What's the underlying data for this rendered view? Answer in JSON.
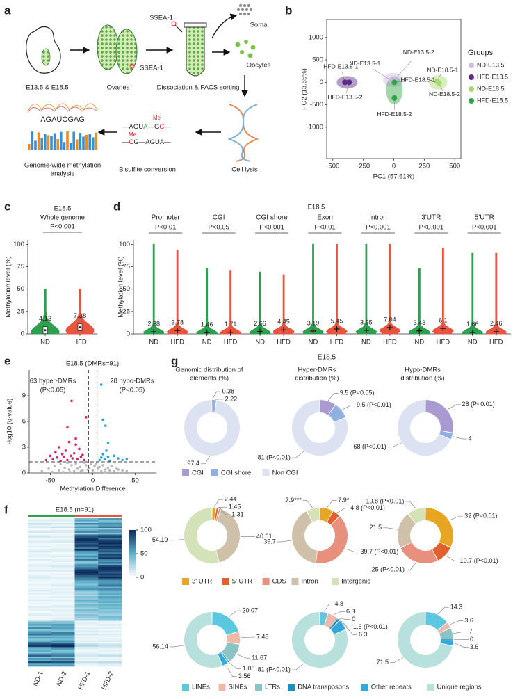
{
  "diagram": {
    "panel": "a",
    "steps": [
      "E13.5 & E18.5",
      "Ovaries",
      "Dissociation & FACS sorting",
      "Cell lysis",
      "Bisulfite conversion"
    ],
    "analysis": [
      "Genome-wide methylation",
      "analysis"
    ],
    "marker": "SSEA-1",
    "cell_types": [
      "Soma",
      "Oocytes"
    ],
    "sequence": "AGAUCGAG",
    "strand_top": [
      "—AGU",
      "A",
      "—G",
      "C",
      "—"
    ],
    "strand_bottom": [
      "—",
      "C",
      "G—AGUA—"
    ],
    "mark": "Me"
  },
  "chart_data": [
    {
      "panel": "b",
      "type": "scatter",
      "x_label": "PC1 (57.61%)",
      "y_label": "PC2 (13.65%)",
      "xlim": [
        -550,
        550
      ],
      "ylim": [
        -1700,
        1400
      ],
      "xticks": [
        -500,
        -250,
        0,
        250,
        500
      ],
      "yticks": [
        -1000,
        -500,
        0,
        500,
        1000
      ],
      "legend_title": "Groups",
      "legend": "right",
      "series": [
        {
          "name": "ND-E13.5",
          "color": "#cdb6df",
          "x": [
            -20,
            10
          ],
          "y": [
            40,
            70
          ],
          "labels": [
            "ND-E13.5-1",
            "ND-E13.5-2"
          ]
        },
        {
          "name": "HFD-E13.5",
          "color": "#5b2a86",
          "x": [
            -400,
            -365
          ],
          "y": [
            0,
            0
          ],
          "labels": [
            "HFD-E13.5-1",
            "HFD-E13.5-2"
          ]
        },
        {
          "name": "ND-E18.5",
          "color": "#a9d86e",
          "x": [
            355,
            370
          ],
          "y": [
            20,
            -20
          ],
          "labels": [
            "ND-E18.5-1",
            "ND-E18.5-2"
          ]
        },
        {
          "name": "HFD-E18.5",
          "color": "#34a448",
          "x": [
            5,
            5
          ],
          "y": [
            0,
            -350
          ],
          "labels": [
            "HFD-E18.5-1",
            "HFD-E18.5-2"
          ]
        }
      ]
    },
    {
      "panel": "c",
      "type": "violin",
      "title": "E18.5",
      "subtitle": "Whole genome",
      "annotation": "P<0.001",
      "y_label": "Methylation level (%)",
      "ylim": [
        0,
        105
      ],
      "yticks": [
        0,
        25,
        50,
        75,
        100
      ],
      "categories": [
        "ND",
        "HFD"
      ],
      "colors": [
        "#2e9e4f",
        "#e8553f"
      ],
      "values": [
        4.13,
        7.38
      ],
      "max": [
        50,
        50
      ]
    },
    {
      "panel": "d",
      "type": "violin_groups",
      "title": "E18.5",
      "y_label": "Methylation level (%)",
      "ylim": [
        0,
        105
      ],
      "yticks": [
        0,
        25,
        50,
        75,
        100
      ],
      "categories": [
        "Promoter",
        "CGI",
        "CGI shore",
        "Exon",
        "Intron",
        "3'UTR",
        "5'UTR"
      ],
      "annotations": [
        "P<0.01",
        "P<0.05",
        "P<0.001",
        "P<0.01",
        "P<0.001",
        "P<0.001",
        "P<0.001"
      ],
      "series": [
        {
          "name": "ND",
          "color": "#2e9e4f",
          "values": [
            2.38,
            1.46,
            2.66,
            3.19,
            3.95,
            3.43,
            1.66
          ],
          "max": [
            100,
            73,
            69,
            100,
            100,
            73,
            90
          ]
        },
        {
          "name": "HFD",
          "color": "#e8553f",
          "values": [
            3.78,
            1.71,
            4.45,
            5.45,
            7.04,
            6.1,
            2.46
          ],
          "max": [
            93,
            71,
            66,
            100,
            100,
            96,
            90
          ]
        }
      ]
    },
    {
      "panel": "e",
      "type": "volcano",
      "title": "E18.5 (DMRs=91)",
      "annotations": [
        [
          "63 hyper-DMRs",
          "(P<0.05)"
        ],
        [
          "28 hypo-DMRs",
          "(P<0.05)"
        ]
      ],
      "x_label": "Methylation Difference",
      "y_label": "-log10 (q-value)",
      "xlim": [
        -75,
        75
      ],
      "ylim": [
        0,
        12
      ],
      "xticks": [
        -50,
        0,
        50
      ],
      "yticks": [
        0,
        3,
        6,
        9
      ],
      "vlines": [
        -5,
        5
      ],
      "hline": 1.3,
      "series": [
        {
          "color": "#b8b8b8",
          "x": [
            -60,
            -52,
            -45,
            -40,
            -38,
            -33,
            -30,
            -28,
            -25,
            -22,
            -20,
            -18,
            -15,
            -12,
            -10,
            -8,
            -6,
            -4,
            -2,
            0,
            2,
            4,
            6,
            8,
            10,
            12,
            15,
            18,
            20,
            22,
            25,
            28,
            30,
            35,
            40,
            -35,
            -27,
            -14,
            -48,
            14
          ],
          "y": [
            0.2,
            0.5,
            0.8,
            0.3,
            1.0,
            0.6,
            1.2,
            0.4,
            0.9,
            0.2,
            1.1,
            0.5,
            0.7,
            0.3,
            1.2,
            0.9,
            0.4,
            0.6,
            1.0,
            0.3,
            0.8,
            1.1,
            0.5,
            0.7,
            0.2,
            0.9,
            0.4,
            0.6,
            0.3,
            0.8,
            0.2,
            0.5,
            0.4,
            0.3,
            0.2,
            0.1,
            0.1,
            0.2,
            0.1,
            0.1
          ]
        },
        {
          "color": "#d6246e",
          "x": [
            -55,
            -50,
            -47,
            -44,
            -42,
            -40,
            -38,
            -36,
            -34,
            -32,
            -30,
            -28,
            -26,
            -24,
            -22,
            -20,
            -18,
            -16,
            -14,
            -12,
            -10,
            -30,
            -20,
            -8,
            -25
          ],
          "y": [
            1.5,
            2.0,
            1.6,
            2.4,
            1.8,
            3.0,
            1.4,
            2.2,
            1.9,
            2.6,
            1.5,
            3.6,
            2.0,
            1.7,
            2.3,
            4.0,
            1.6,
            2.8,
            1.9,
            2.1,
            1.5,
            5.3,
            3.3,
            6.5,
            8.4
          ]
        },
        {
          "color": "#2aa4d8",
          "x": [
            8,
            10,
            12,
            14,
            16,
            18,
            20,
            25,
            30,
            35,
            40,
            12,
            18,
            10,
            15
          ],
          "y": [
            1.5,
            1.8,
            2.2,
            1.6,
            2.6,
            1.9,
            1.4,
            2.0,
            1.7,
            1.5,
            1.6,
            6.2,
            3.5,
            10.3,
            5.5
          ]
        }
      ]
    },
    {
      "panel": "f",
      "type": "heatmap",
      "title": "E18.5 (n=91)",
      "columns": [
        "ND-1",
        "ND-2",
        "HFD-1",
        "HFD-2"
      ],
      "zlim": [
        0,
        100
      ],
      "colorbar_ticks": [
        0,
        50,
        100
      ],
      "colormap": [
        "#ffffff",
        "#5fb1cc",
        "#0b2a5c"
      ],
      "values": [
        [
          5,
          8,
          45,
          60
        ],
        [
          10,
          12,
          55,
          40
        ],
        [
          3,
          4,
          30,
          48
        ],
        [
          20,
          15,
          70,
          65
        ],
        [
          8,
          6,
          40,
          55
        ],
        [
          12,
          18,
          60,
          75
        ],
        [
          4,
          3,
          35,
          30
        ],
        [
          6,
          10,
          50,
          62
        ],
        [
          15,
          12,
          65,
          58
        ],
        [
          2,
          5,
          28,
          40
        ],
        [
          9,
          7,
          75,
          80
        ],
        [
          14,
          11,
          85,
          90
        ],
        [
          5,
          6,
          95,
          70
        ],
        [
          7,
          9,
          100,
          88
        ],
        [
          11,
          13,
          90,
          95
        ],
        [
          6,
          4,
          80,
          100
        ],
        [
          3,
          8,
          92,
          85
        ],
        [
          10,
          5,
          88,
          97
        ],
        [
          4,
          7,
          70,
          92
        ],
        [
          8,
          12,
          96,
          78
        ],
        [
          13,
          9,
          60,
          85
        ],
        [
          5,
          3,
          55,
          70
        ],
        [
          7,
          6,
          45,
          90
        ],
        [
          9,
          11,
          65,
          80
        ],
        [
          4,
          5,
          50,
          95
        ],
        [
          12,
          8,
          75,
          68
        ],
        [
          6,
          10,
          40,
          60
        ],
        [
          3,
          4,
          35,
          75
        ],
        [
          8,
          7,
          58,
          52
        ],
        [
          10,
          14,
          62,
          88
        ],
        [
          5,
          9,
          70,
          100
        ],
        [
          7,
          6,
          85,
          96
        ],
        [
          11,
          12,
          95,
          90
        ],
        [
          4,
          3,
          100,
          82
        ],
        [
          6,
          8,
          92,
          94
        ],
        [
          9,
          5,
          80,
          86
        ],
        [
          13,
          10,
          72,
          98
        ],
        [
          5,
          7,
          66,
          74
        ],
        [
          8,
          4,
          55,
          62
        ],
        [
          3,
          6,
          48,
          58
        ],
        [
          10,
          9,
          38,
          66
        ],
        [
          6,
          11,
          44,
          72
        ],
        [
          4,
          5,
          52,
          50
        ],
        [
          7,
          8,
          60,
          64
        ],
        [
          12,
          6,
          46,
          56
        ],
        [
          5,
          10,
          30,
          45
        ],
        [
          9,
          7,
          34,
          52
        ],
        [
          3,
          4,
          28,
          40
        ],
        [
          8,
          12,
          42,
          60
        ],
        [
          6,
          5,
          36,
          48
        ],
        [
          11,
          9,
          50,
          44
        ],
        [
          4,
          6,
          40,
          55
        ],
        [
          7,
          3,
          32,
          38
        ],
        [
          5,
          8,
          45,
          50
        ],
        [
          10,
          11,
          38,
          42
        ],
        [
          6,
          4,
          30,
          46
        ],
        [
          9,
          10,
          44,
          36
        ],
        [
          3,
          7,
          35,
          40
        ],
        [
          8,
          5,
          28,
          34
        ],
        [
          12,
          9,
          40,
          30
        ],
        [
          5,
          6,
          33,
          44
        ],
        [
          7,
          10,
          25,
          38
        ],
        [
          4,
          8,
          30,
          35
        ],
        [
          30,
          35,
          5,
          8
        ],
        [
          45,
          40,
          10,
          6
        ],
        [
          55,
          60,
          8,
          12
        ],
        [
          40,
          50,
          4,
          5
        ],
        [
          65,
          55,
          10,
          9
        ],
        [
          35,
          45,
          6,
          3
        ],
        [
          50,
          38,
          12,
          10
        ],
        [
          60,
          70,
          8,
          6
        ],
        [
          75,
          65,
          15,
          10
        ],
        [
          42,
          48,
          5,
          7
        ],
        [
          55,
          50,
          9,
          4
        ],
        [
          38,
          42,
          6,
          8
        ],
        [
          48,
          60,
          10,
          12
        ],
        [
          70,
          58,
          7,
          5
        ],
        [
          85,
          90,
          20,
          15
        ],
        [
          95,
          100,
          25,
          18
        ],
        [
          60,
          75,
          10,
          12
        ],
        [
          45,
          55,
          8,
          6
        ],
        [
          52,
          40,
          5,
          9
        ],
        [
          36,
          44,
          7,
          4
        ],
        [
          58,
          62,
          12,
          10
        ],
        [
          80,
          70,
          15,
          20
        ],
        [
          40,
          35,
          6,
          5
        ],
        [
          65,
          78,
          10,
          8
        ],
        [
          50,
          55,
          4,
          6
        ],
        [
          90,
          85,
          18,
          22
        ],
        [
          44,
          50,
          8,
          10
        ],
        [
          62,
          58,
          6,
          9
        ]
      ]
    },
    {
      "panel": "g",
      "type": "donut",
      "title": "E18.5",
      "column_titles": [
        [
          "Genomic distribution of",
          "elements (%)"
        ],
        [
          "Hyper-DMRs",
          "distribution (%)"
        ],
        [
          "Hypo-DMRs",
          "distribution (%)"
        ]
      ],
      "rows": [
        {
          "categories": [
            "CGI",
            "CGI shore",
            "Non CGI"
          ],
          "colors": [
            "#a99bd2",
            "#8fb0e0",
            "#dce2f2"
          ],
          "series": [
            {
              "values": [
                0.38,
                2.22,
                97.4
              ]
            },
            {
              "values": [
                9.5,
                9.5,
                81
              ],
              "value_labels": [
                "9.5 (P<0.05)",
                "9.5 (P<0.01)",
                "81 (P<0.01)"
              ]
            },
            {
              "values": [
                28,
                4,
                68
              ],
              "value_labels": [
                "28 (P<0.01)",
                "4",
                "68 (P<0.01)"
              ]
            }
          ]
        },
        {
          "categories": [
            "3' UTR",
            "5' UTR",
            "CDS",
            "Intron",
            "Intergenic"
          ],
          "colors": [
            "#e6a624",
            "#e0602f",
            "#e8907e",
            "#cfc1a9",
            "#d4e2b8"
          ],
          "series": [
            {
              "values": [
                2.44,
                1.45,
                1.31,
                40.61,
                54.19
              ]
            },
            {
              "values": [
                7.9,
                4.8,
                39.7,
                39.7,
                7.9
              ],
              "value_labels": [
                "7.9*",
                "4.8 (P<0.01)",
                "39.7 (P<0.01)",
                "39.7",
                "7.9***"
              ]
            },
            {
              "values": [
                32,
                10.7,
                25,
                21.5,
                10.8
              ],
              "value_labels": [
                "32 (P<0.01)",
                "10.7 (P<0.01)",
                "25 (P<0.01)",
                "21.5",
                "10.8 (P<0.01)"
              ]
            }
          ]
        },
        {
          "categories": [
            "LINEs",
            "SINEs",
            "LTRs",
            "DNA transposons",
            "Other repeats",
            "Unique regions"
          ],
          "colors": [
            "#5bc8e0",
            "#f0b8a8",
            "#8cc4c4",
            "#1a8fc4",
            "#34a8d8",
            "#b8e0dc"
          ],
          "series": [
            {
              "values": [
                20.07,
                7.48,
                11.67,
                1.08,
                3.56,
                56.14
              ]
            },
            {
              "values": [
                4.8,
                6.3,
                0,
                1.6,
                6.3,
                81
              ],
              "value_labels": [
                "4.8",
                "6.3",
                "0",
                "1.6 (P<0.01)",
                "6.3",
                "81 (P<0.01)"
              ]
            },
            {
              "values": [
                14.3,
                3.6,
                7,
                0,
                3.6,
                71.5
              ]
            }
          ]
        }
      ]
    }
  ]
}
